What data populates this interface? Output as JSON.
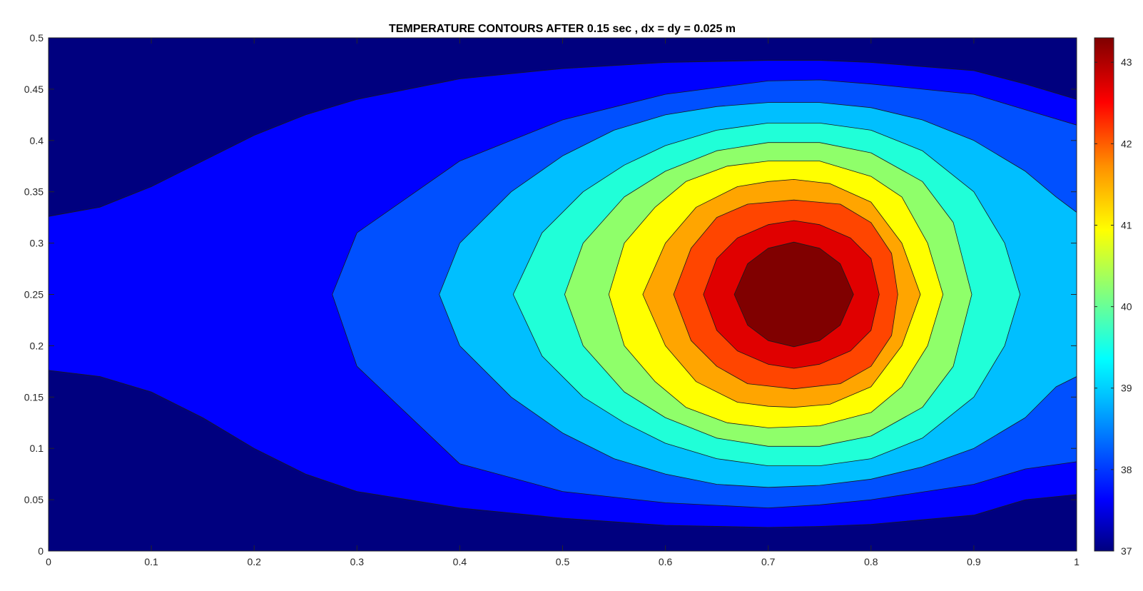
{
  "chart_data": {
    "type": "contour",
    "title": "TEMPERATURE CONTOURS AFTER 0.15 sec , dx = dy = 0.025 m",
    "xlabel": "",
    "ylabel": "",
    "xlim": [
      0,
      1
    ],
    "ylim": [
      0,
      0.5
    ],
    "x_ticks": [
      "0",
      "0.1",
      "0.2",
      "0.3",
      "0.4",
      "0.5",
      "0.6",
      "0.7",
      "0.8",
      "0.9",
      "1"
    ],
    "y_ticks": [
      "0",
      "0.05",
      "0.1",
      "0.15",
      "0.2",
      "0.25",
      "0.3",
      "0.35",
      "0.4",
      "0.45",
      "0.5"
    ],
    "colormap": "jet",
    "colorbar": {
      "range": [
        37,
        43.3
      ],
      "ticks": [
        "37",
        "38",
        "39",
        "40",
        "41",
        "42",
        "43"
      ]
    },
    "hotspot": {
      "x": 0.725,
      "y": 0.25,
      "max_value": 43.3
    },
    "level_colors": [
      "#00007f",
      "#0000ff",
      "#0050ff",
      "#00bfff",
      "#20ffd8",
      "#8fff6a",
      "#ffff00",
      "#ffa500",
      "#ff4500",
      "#e00000",
      "#800000"
    ],
    "levels": [
      {
        "color": "#0000ff",
        "x": [
          0.0,
          0.05,
          0.1,
          0.15,
          0.2,
          0.25,
          0.3,
          0.4,
          0.5,
          0.6,
          0.7,
          0.75,
          0.8,
          0.9,
          0.95,
          1.0,
          1.0,
          0.95,
          0.9,
          0.8,
          0.75,
          0.7,
          0.6,
          0.5,
          0.4,
          0.3,
          0.25,
          0.2,
          0.15,
          0.1,
          0.05,
          0.0
        ],
        "y": [
          0.326,
          0.335,
          0.355,
          0.38,
          0.405,
          0.425,
          0.44,
          0.46,
          0.47,
          0.476,
          0.478,
          0.478,
          0.476,
          0.468,
          0.455,
          0.44,
          0.055,
          0.05,
          0.035,
          0.026,
          0.024,
          0.023,
          0.025,
          0.032,
          0.042,
          0.058,
          0.075,
          0.1,
          0.13,
          0.155,
          0.17,
          0.176
        ]
      },
      {
        "color": "#0050ff",
        "x": [
          0.276,
          0.3,
          0.4,
          0.5,
          0.6,
          0.7,
          0.75,
          0.8,
          0.9,
          0.95,
          1.0,
          1.0,
          0.95,
          0.9,
          0.8,
          0.75,
          0.7,
          0.6,
          0.5,
          0.4,
          0.3
        ],
        "y": [
          0.25,
          0.31,
          0.38,
          0.42,
          0.445,
          0.458,
          0.459,
          0.455,
          0.445,
          0.43,
          0.415,
          0.087,
          0.08,
          0.065,
          0.05,
          0.045,
          0.042,
          0.047,
          0.058,
          0.085,
          0.18
        ]
      },
      {
        "color": "#00bfff",
        "x": [
          0.38,
          0.4,
          0.45,
          0.5,
          0.55,
          0.6,
          0.65,
          0.7,
          0.75,
          0.8,
          0.85,
          0.9,
          0.95,
          0.98,
          1.0,
          1.0,
          0.98,
          0.95,
          0.9,
          0.85,
          0.8,
          0.75,
          0.7,
          0.65,
          0.6,
          0.55,
          0.5,
          0.45,
          0.4
        ],
        "y": [
          0.25,
          0.3,
          0.35,
          0.385,
          0.41,
          0.425,
          0.433,
          0.437,
          0.437,
          0.432,
          0.42,
          0.4,
          0.37,
          0.345,
          0.33,
          0.17,
          0.16,
          0.13,
          0.1,
          0.082,
          0.07,
          0.064,
          0.062,
          0.065,
          0.075,
          0.09,
          0.115,
          0.15,
          0.2
        ]
      },
      {
        "color": "#20ffd8",
        "x": [
          0.452,
          0.48,
          0.52,
          0.56,
          0.6,
          0.65,
          0.7,
          0.75,
          0.8,
          0.85,
          0.9,
          0.93,
          0.945,
          0.93,
          0.9,
          0.85,
          0.8,
          0.75,
          0.7,
          0.65,
          0.6,
          0.56,
          0.52,
          0.48
        ],
        "y": [
          0.25,
          0.31,
          0.35,
          0.376,
          0.395,
          0.41,
          0.417,
          0.417,
          0.41,
          0.39,
          0.35,
          0.3,
          0.25,
          0.2,
          0.15,
          0.11,
          0.09,
          0.083,
          0.083,
          0.09,
          0.105,
          0.125,
          0.15,
          0.19
        ]
      },
      {
        "color": "#8fff6a",
        "x": [
          0.502,
          0.52,
          0.56,
          0.6,
          0.65,
          0.7,
          0.75,
          0.8,
          0.85,
          0.88,
          0.898,
          0.88,
          0.85,
          0.8,
          0.75,
          0.7,
          0.65,
          0.6,
          0.56,
          0.52
        ],
        "y": [
          0.25,
          0.3,
          0.345,
          0.37,
          0.39,
          0.398,
          0.398,
          0.388,
          0.36,
          0.32,
          0.25,
          0.18,
          0.14,
          0.112,
          0.102,
          0.102,
          0.11,
          0.13,
          0.155,
          0.2
        ]
      },
      {
        "color": "#ffff00",
        "x": [
          0.545,
          0.56,
          0.59,
          0.62,
          0.66,
          0.7,
          0.75,
          0.8,
          0.83,
          0.855,
          0.87,
          0.855,
          0.83,
          0.8,
          0.75,
          0.7,
          0.66,
          0.62,
          0.59,
          0.56
        ],
        "y": [
          0.25,
          0.3,
          0.335,
          0.36,
          0.375,
          0.38,
          0.38,
          0.365,
          0.345,
          0.3,
          0.25,
          0.2,
          0.16,
          0.135,
          0.122,
          0.12,
          0.125,
          0.14,
          0.165,
          0.2
        ]
      },
      {
        "color": "#ffa500",
        "x": [
          0.578,
          0.6,
          0.63,
          0.67,
          0.7,
          0.725,
          0.76,
          0.8,
          0.83,
          0.848,
          0.83,
          0.8,
          0.76,
          0.725,
          0.7,
          0.67,
          0.63,
          0.6
        ],
        "y": [
          0.25,
          0.3,
          0.335,
          0.355,
          0.36,
          0.362,
          0.358,
          0.34,
          0.3,
          0.25,
          0.2,
          0.16,
          0.143,
          0.14,
          0.141,
          0.145,
          0.165,
          0.2
        ]
      },
      {
        "color": "#ff4500",
        "x": [
          0.608,
          0.625,
          0.65,
          0.68,
          0.725,
          0.77,
          0.8,
          0.82,
          0.826,
          0.82,
          0.8,
          0.77,
          0.725,
          0.68,
          0.65,
          0.625
        ],
        "y": [
          0.25,
          0.295,
          0.325,
          0.338,
          0.342,
          0.338,
          0.32,
          0.29,
          0.25,
          0.21,
          0.18,
          0.163,
          0.158,
          0.163,
          0.18,
          0.205
        ]
      },
      {
        "color": "#e00000",
        "x": [
          0.637,
          0.65,
          0.67,
          0.7,
          0.725,
          0.75,
          0.78,
          0.8,
          0.808,
          0.8,
          0.78,
          0.75,
          0.725,
          0.7,
          0.67,
          0.65
        ],
        "y": [
          0.25,
          0.285,
          0.305,
          0.318,
          0.322,
          0.318,
          0.305,
          0.285,
          0.25,
          0.215,
          0.195,
          0.182,
          0.178,
          0.182,
          0.195,
          0.215
        ]
      },
      {
        "color": "#800000",
        "x": [
          0.667,
          0.68,
          0.7,
          0.725,
          0.75,
          0.77,
          0.783,
          0.77,
          0.75,
          0.725,
          0.7,
          0.68
        ],
        "y": [
          0.25,
          0.28,
          0.295,
          0.301,
          0.295,
          0.28,
          0.25,
          0.22,
          0.205,
          0.199,
          0.205,
          0.22
        ]
      }
    ]
  }
}
